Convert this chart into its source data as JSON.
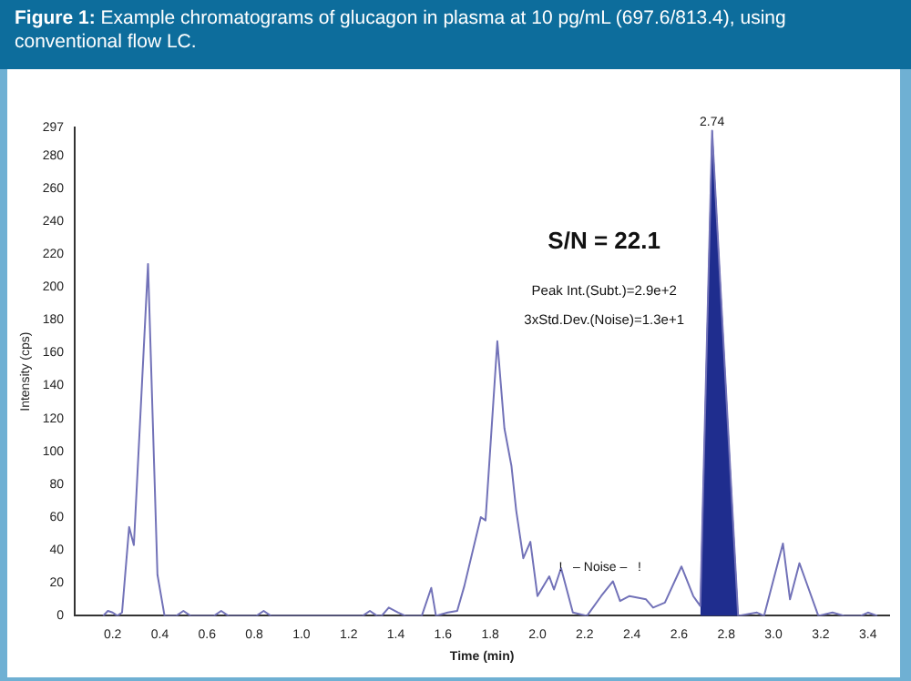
{
  "chart_data": {
    "type": "line",
    "title": "Figure 1: Example chromatograms of glucagon in plasma at 10 pg/mL (697.6/813.4), using conventional flow LC.",
    "xlabel": "Time (min)",
    "ylabel": "Intensity (cps)",
    "series": [
      {
        "type": "line",
        "color": "#7272b8",
        "x": [
          0.16,
          0.18,
          0.2,
          0.22,
          0.24,
          0.27,
          0.29,
          0.35,
          0.39,
          0.42,
          0.47,
          0.5,
          0.53,
          0.63,
          0.66,
          0.69,
          0.81,
          0.84,
          0.87,
          1.26,
          1.29,
          1.32,
          1.34,
          1.37,
          1.41,
          1.44,
          1.51,
          1.55,
          1.57,
          1.62,
          1.66,
          1.69,
          1.76,
          1.78,
          1.83,
          1.86,
          1.89,
          1.91,
          1.94,
          1.97,
          2.0,
          2.05,
          2.07,
          2.1,
          2.15,
          2.21,
          2.27,
          2.32,
          2.35,
          2.39,
          2.46,
          2.49,
          2.54,
          2.61,
          2.66,
          2.69,
          2.74,
          2.85,
          2.93,
          2.96,
          3.04,
          3.07,
          3.11,
          3.14,
          3.19,
          3.25,
          3.3,
          3.37,
          3.4,
          3.44
        ],
        "values": [
          0,
          3,
          2,
          0,
          2,
          54,
          43,
          214,
          25,
          0,
          0,
          3,
          0,
          0,
          3,
          0,
          0,
          3,
          0,
          0,
          3,
          0,
          0,
          5,
          2,
          0,
          0,
          17,
          0,
          2,
          3,
          18,
          60,
          58,
          167,
          114,
          91,
          64,
          35,
          45,
          12,
          24,
          16,
          29,
          2,
          0,
          12,
          21,
          9,
          12,
          10,
          5,
          8,
          30,
          12,
          6,
          295,
          0,
          2,
          0,
          44,
          10,
          32,
          20,
          0,
          2,
          0,
          0,
          2,
          0
        ]
      },
      {
        "type": "area",
        "color": "#1f2d8e",
        "x": [
          2.69,
          2.74,
          2.85
        ],
        "values": [
          6,
          295,
          0
        ]
      }
    ],
    "xlim": [
      0.04,
      3.49
    ],
    "xticks": [
      0.2,
      0.4,
      0.6,
      0.8,
      {
        "value": 1,
        "label": "1.0"
      },
      1.2,
      1.4,
      1.6,
      1.8,
      {
        "value": 2,
        "label": "2.0"
      },
      2.2,
      2.4,
      2.6,
      2.8,
      {
        "value": 3,
        "label": "3.0"
      },
      3.2,
      3.4
    ],
    "ylim": [
      0,
      297
    ],
    "yticks": [
      0,
      20,
      40,
      60,
      80,
      100,
      120,
      140,
      160,
      180,
      200,
      220,
      240,
      260,
      280,
      297
    ],
    "annotations": [
      {
        "text": "2.74",
        "x": 2.74,
        "y": 295
      },
      "S/N = 22.1",
      "Peak Int.(Subt.)=2.9e+2",
      "3xStd.Dev.(Noise)=1.3e+1",
      "!   – Noise –   !"
    ],
    "grid": false,
    "legend": false,
    "marker": "none"
  }
}
